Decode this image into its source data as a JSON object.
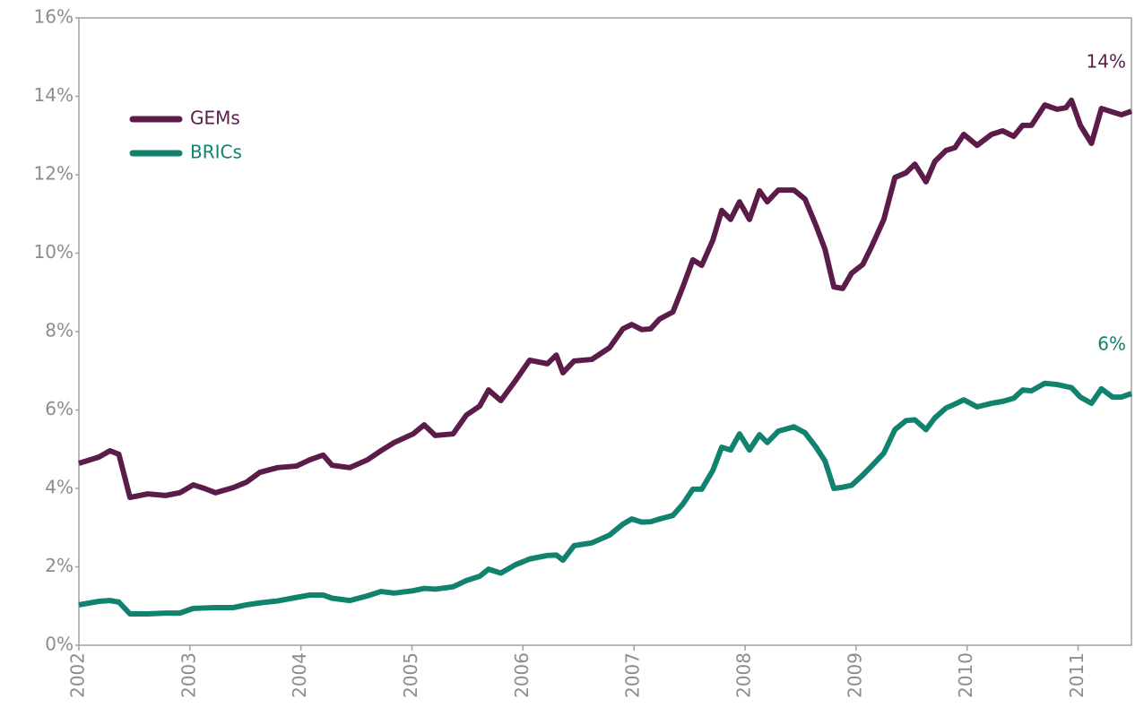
{
  "chart_data": {
    "type": "line",
    "x": [
      2002,
      2002.18,
      2002.28,
      2002.36,
      2002.46,
      2002.62,
      2002.78,
      2002.91,
      2003.03,
      2003.13,
      2003.23,
      2003.39,
      2003.51,
      2003.63,
      2003.79,
      2003.96,
      2004.08,
      2004.2,
      2004.28,
      2004.44,
      2004.6,
      2004.72,
      2004.84,
      2005.01,
      2005.11,
      2005.21,
      2005.37,
      2005.49,
      2005.61,
      2005.69,
      2005.8,
      2005.93,
      2006.06,
      2006.22,
      2006.3,
      2006.36,
      2006.46,
      2006.62,
      2006.78,
      2006.9,
      2006.98,
      2007.07,
      2007.15,
      2007.23,
      2007.35,
      2007.44,
      2007.53,
      2007.61,
      2007.71,
      2007.79,
      2007.87,
      2007.95,
      2008.04,
      2008.13,
      2008.2,
      2008.3,
      2008.44,
      2008.54,
      2008.64,
      2008.72,
      2008.8,
      2008.88,
      2008.96,
      2009.06,
      2009.14,
      2009.25,
      2009.35,
      2009.45,
      2009.53,
      2009.63,
      2009.71,
      2009.81,
      2009.89,
      2009.97,
      2010.09,
      2010.22,
      2010.32,
      2010.42,
      2010.5,
      2010.58,
      2010.7,
      2010.81,
      2010.89,
      2010.94,
      2011.02,
      2011.12,
      2011.21,
      2011.31,
      2011.39,
      2011.48
    ],
    "series": [
      {
        "name": "GEMs",
        "color": "#5b1c4a",
        "end_label": "14%",
        "values": [
          4.64,
          4.8,
          4.96,
          4.87,
          3.77,
          3.86,
          3.82,
          3.89,
          4.09,
          4.0,
          3.89,
          4.02,
          4.16,
          4.41,
          4.53,
          4.57,
          4.73,
          4.85,
          4.59,
          4.53,
          4.73,
          4.96,
          5.17,
          5.39,
          5.62,
          5.35,
          5.39,
          5.87,
          6.1,
          6.51,
          6.24,
          6.74,
          7.27,
          7.18,
          7.4,
          6.95,
          7.25,
          7.29,
          7.59,
          8.07,
          8.18,
          8.05,
          8.07,
          8.32,
          8.5,
          9.14,
          9.83,
          9.69,
          10.33,
          11.09,
          10.86,
          11.31,
          10.86,
          11.59,
          11.31,
          11.61,
          11.61,
          11.38,
          10.7,
          10.1,
          9.14,
          9.1,
          9.49,
          9.71,
          10.17,
          10.86,
          11.93,
          12.05,
          12.27,
          11.82,
          12.34,
          12.62,
          12.69,
          13.03,
          12.75,
          13.03,
          13.12,
          12.98,
          13.26,
          13.26,
          13.78,
          13.67,
          13.71,
          13.9,
          13.26,
          12.8,
          13.69,
          13.6,
          13.53,
          13.62
        ]
      },
      {
        "name": "BRICs",
        "color": "#10826e",
        "end_label": "6%",
        "values": [
          1.03,
          1.12,
          1.14,
          1.1,
          0.8,
          0.8,
          0.82,
          0.82,
          0.94,
          0.95,
          0.96,
          0.96,
          1.03,
          1.08,
          1.13,
          1.22,
          1.28,
          1.28,
          1.2,
          1.14,
          1.26,
          1.37,
          1.33,
          1.39,
          1.45,
          1.43,
          1.49,
          1.65,
          1.76,
          1.94,
          1.84,
          2.05,
          2.2,
          2.29,
          2.3,
          2.17,
          2.54,
          2.61,
          2.81,
          3.09,
          3.22,
          3.14,
          3.15,
          3.22,
          3.31,
          3.6,
          3.98,
          3.98,
          4.46,
          5.05,
          4.98,
          5.39,
          4.98,
          5.37,
          5.17,
          5.46,
          5.57,
          5.42,
          5.05,
          4.7,
          4.0,
          4.03,
          4.08,
          4.34,
          4.57,
          4.9,
          5.5,
          5.73,
          5.75,
          5.5,
          5.8,
          6.05,
          6.15,
          6.26,
          6.08,
          6.17,
          6.22,
          6.3,
          6.51,
          6.49,
          6.68,
          6.65,
          6.6,
          6.57,
          6.33,
          6.17,
          6.54,
          6.33,
          6.33,
          6.42
        ]
      }
    ],
    "xlim": [
      2002,
      2011.48
    ],
    "xticks": [
      2002,
      2003,
      2004,
      2005,
      2006,
      2007,
      2008,
      2009,
      2010,
      2011
    ],
    "ylim": [
      0,
      16
    ],
    "yticks": [
      {
        "value": 0,
        "label": "0%"
      },
      {
        "value": 2,
        "label": "2%"
      },
      {
        "value": 4,
        "label": "4%"
      },
      {
        "value": 6,
        "label": "6%"
      },
      {
        "value": 8,
        "label": "8%"
      },
      {
        "value": 10,
        "label": "10%"
      },
      {
        "value": 12,
        "label": "12%"
      },
      {
        "value": 14,
        "label": "14%"
      },
      {
        "value": 16,
        "label": "16%"
      }
    ],
    "legend": "upper left",
    "grid": false
  }
}
